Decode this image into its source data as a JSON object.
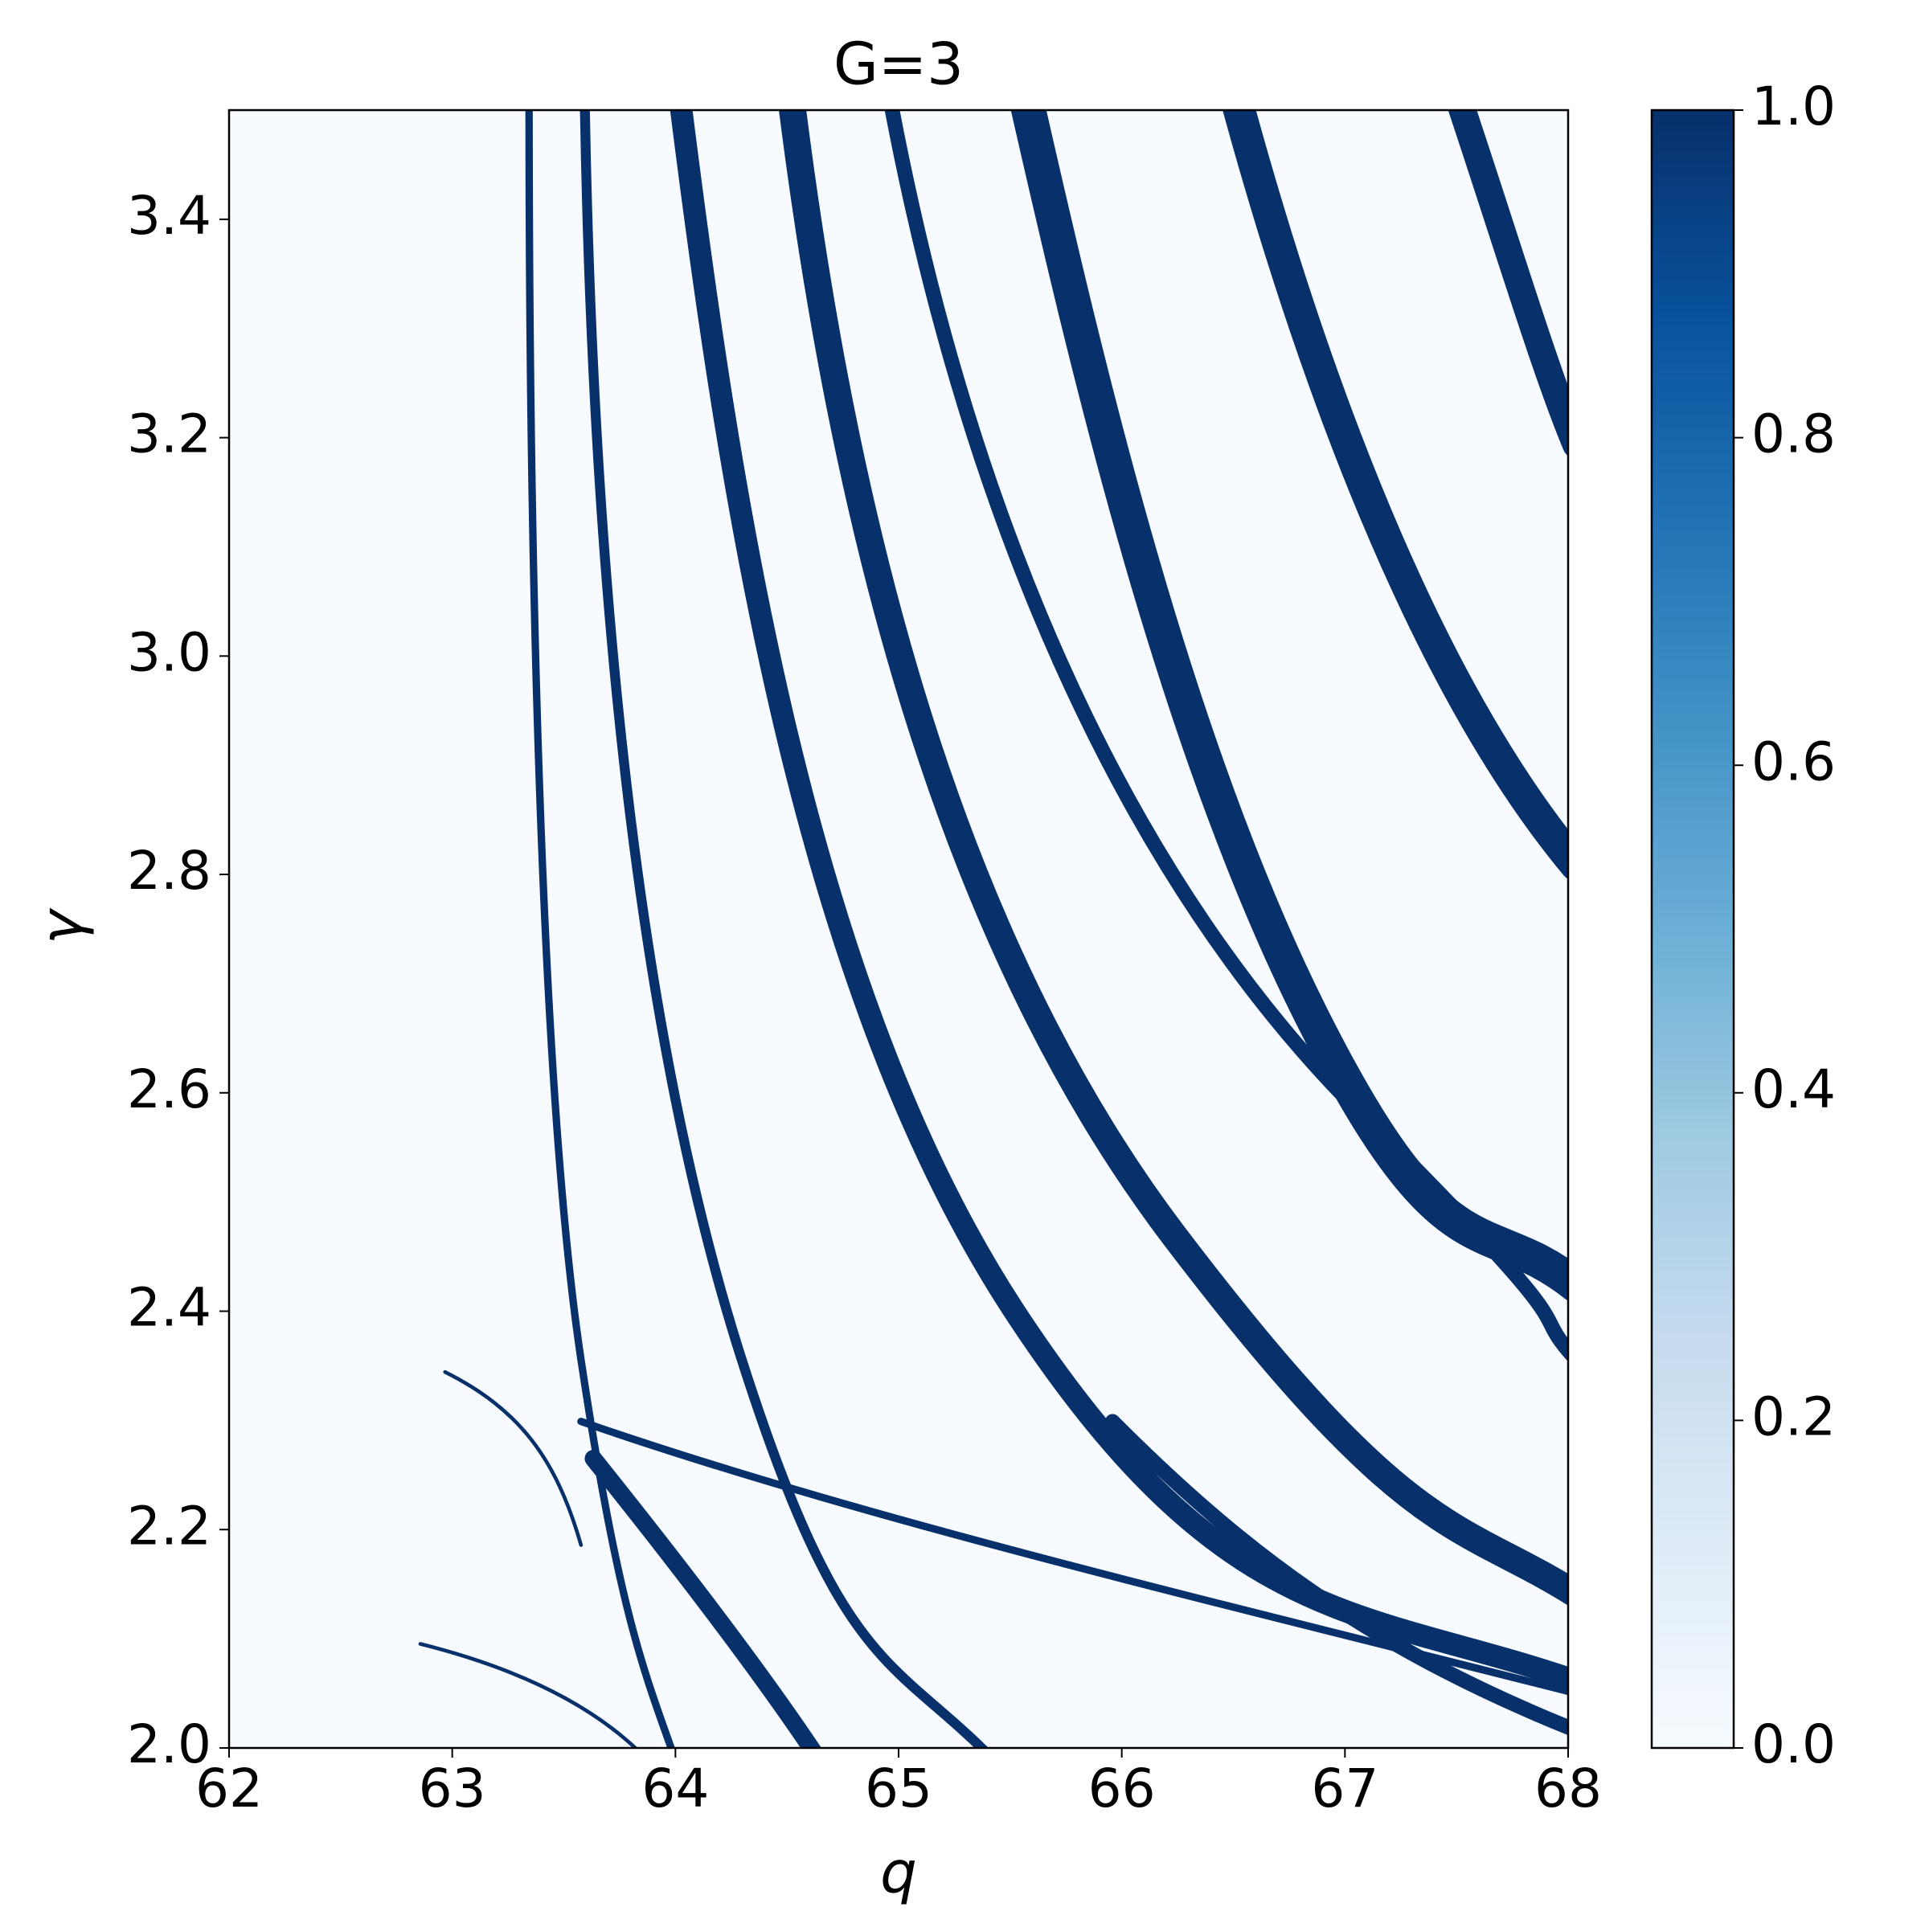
{
  "chart_data": {
    "type": "heatmap",
    "title": "G=3",
    "x_label": "q",
    "y_label": "γ",
    "xlim": [
      62,
      68
    ],
    "xticks": [
      62,
      63,
      64,
      65,
      66,
      67,
      68
    ],
    "ylim": [
      2.0,
      3.5
    ],
    "yticks": [
      {
        "value": 2,
        "label": "2.0"
      },
      2.2,
      2.4,
      2.6,
      2.8,
      {
        "value": 3,
        "label": "3.0"
      },
      3.2,
      3.4
    ],
    "colorbar": {
      "lim": [
        0,
        1
      ],
      "ticks": [
        {
          "value": 0,
          "label": "0.0"
        },
        0.2,
        0.4,
        0.6,
        0.8,
        {
          "value": 1,
          "label": "1.0"
        }
      ],
      "colors": [
        "#f7fbff",
        "#deebf7",
        "#c6dbef",
        "#9ecae1",
        "#6baed6",
        "#4292c6",
        "#2171b5",
        "#08519c",
        "#08306b"
      ]
    }
  }
}
